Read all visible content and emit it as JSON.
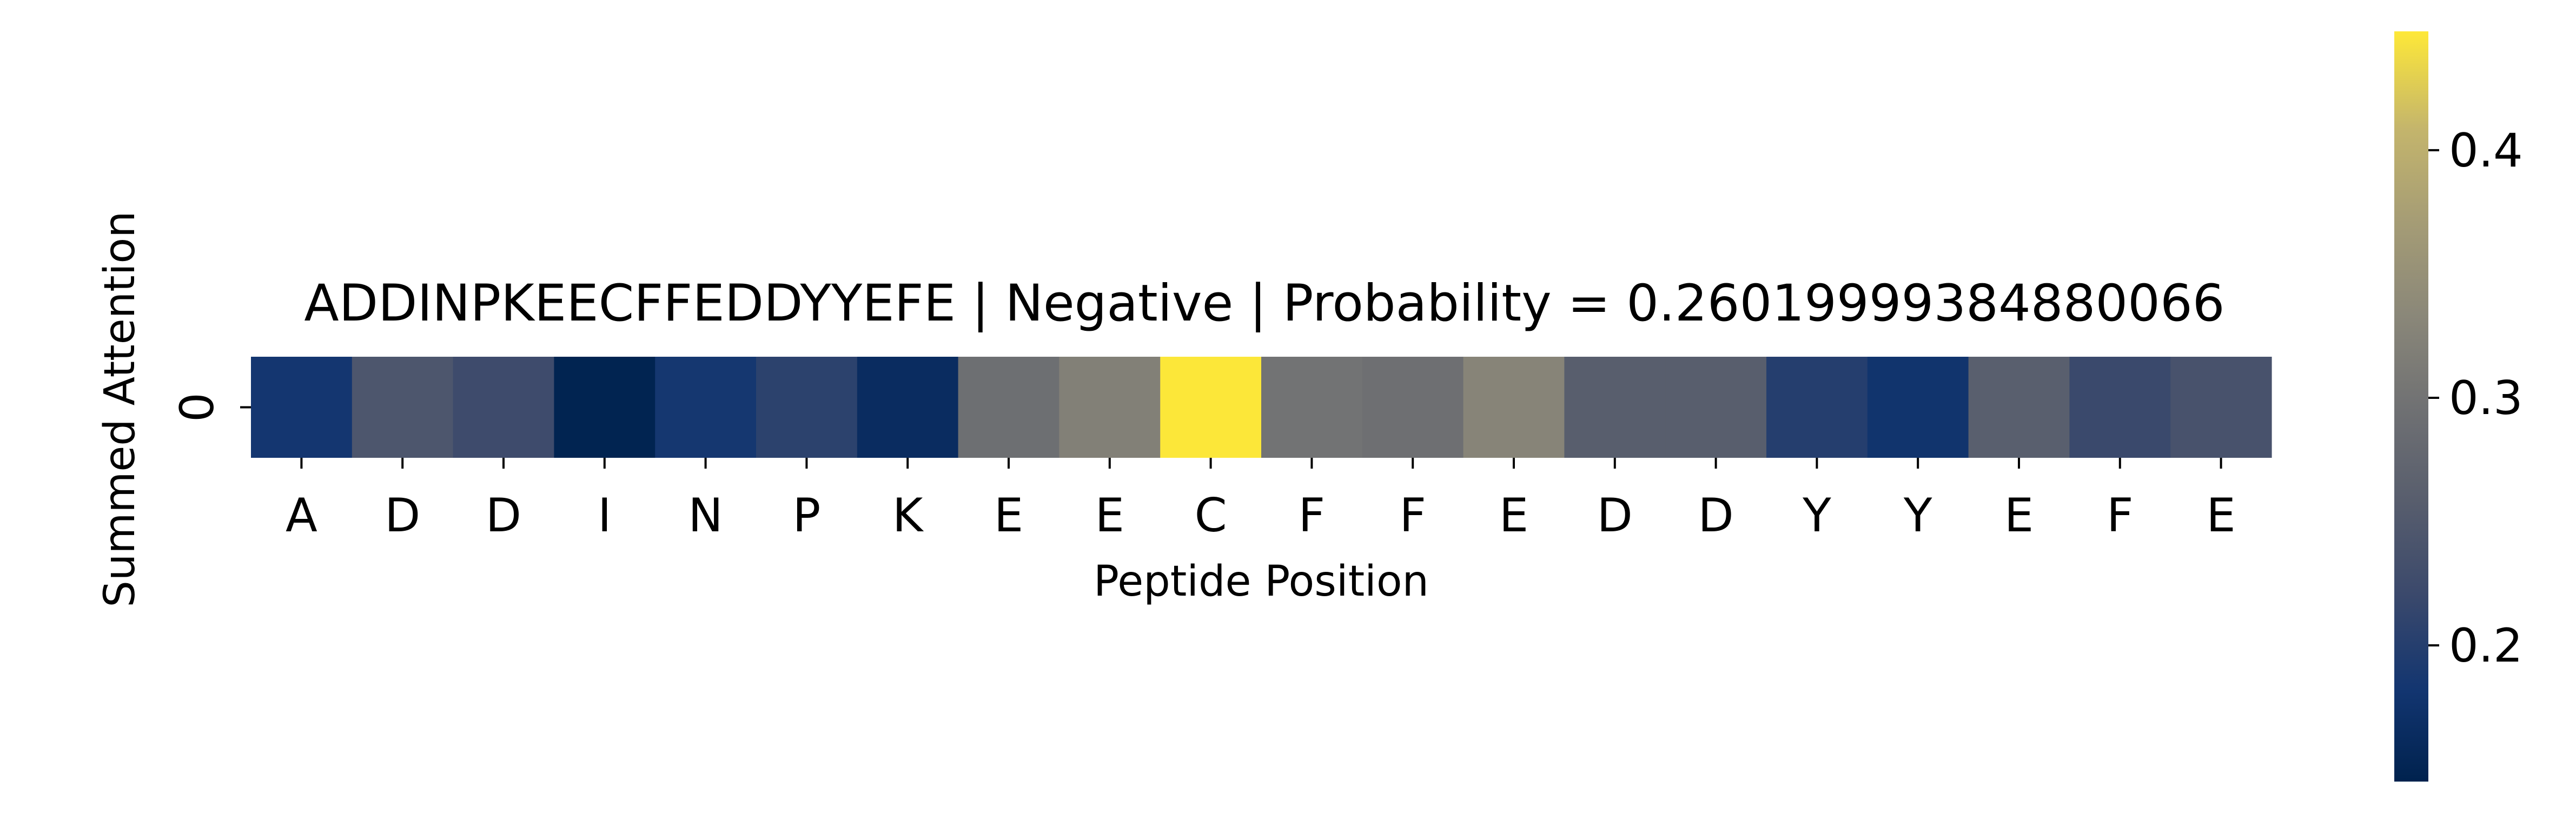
{
  "chart_data": {
    "type": "heatmap",
    "title": "ADDINPKEECFFEDDYYEFE | Negative | Probability = 0.26019999384880066",
    "xlabel": "Peptide Position",
    "ylabel": "Summed Attention",
    "x_tick_labels": [
      "A",
      "D",
      "D",
      "I",
      "N",
      "P",
      "K",
      "E",
      "E",
      "C",
      "F",
      "F",
      "E",
      "D",
      "D",
      "Y",
      "Y",
      "E",
      "F",
      "E"
    ],
    "y_tick_labels": [
      "0"
    ],
    "values": [
      [
        0.185,
        0.245,
        0.225,
        0.148,
        0.186,
        0.207,
        0.165,
        0.292,
        0.322,
        0.447,
        0.3,
        0.293,
        0.33,
        0.26,
        0.26,
        0.2,
        0.18,
        0.262,
        0.22,
        0.238
      ]
    ],
    "colormap": "cividis",
    "colorbar": {
      "range": [
        0.145,
        0.448
      ],
      "ticks": [
        0.2,
        0.3,
        0.4
      ],
      "tick_labels": [
        "0.2",
        "0.3",
        "0.4"
      ]
    },
    "grid": false,
    "legend": "none"
  }
}
